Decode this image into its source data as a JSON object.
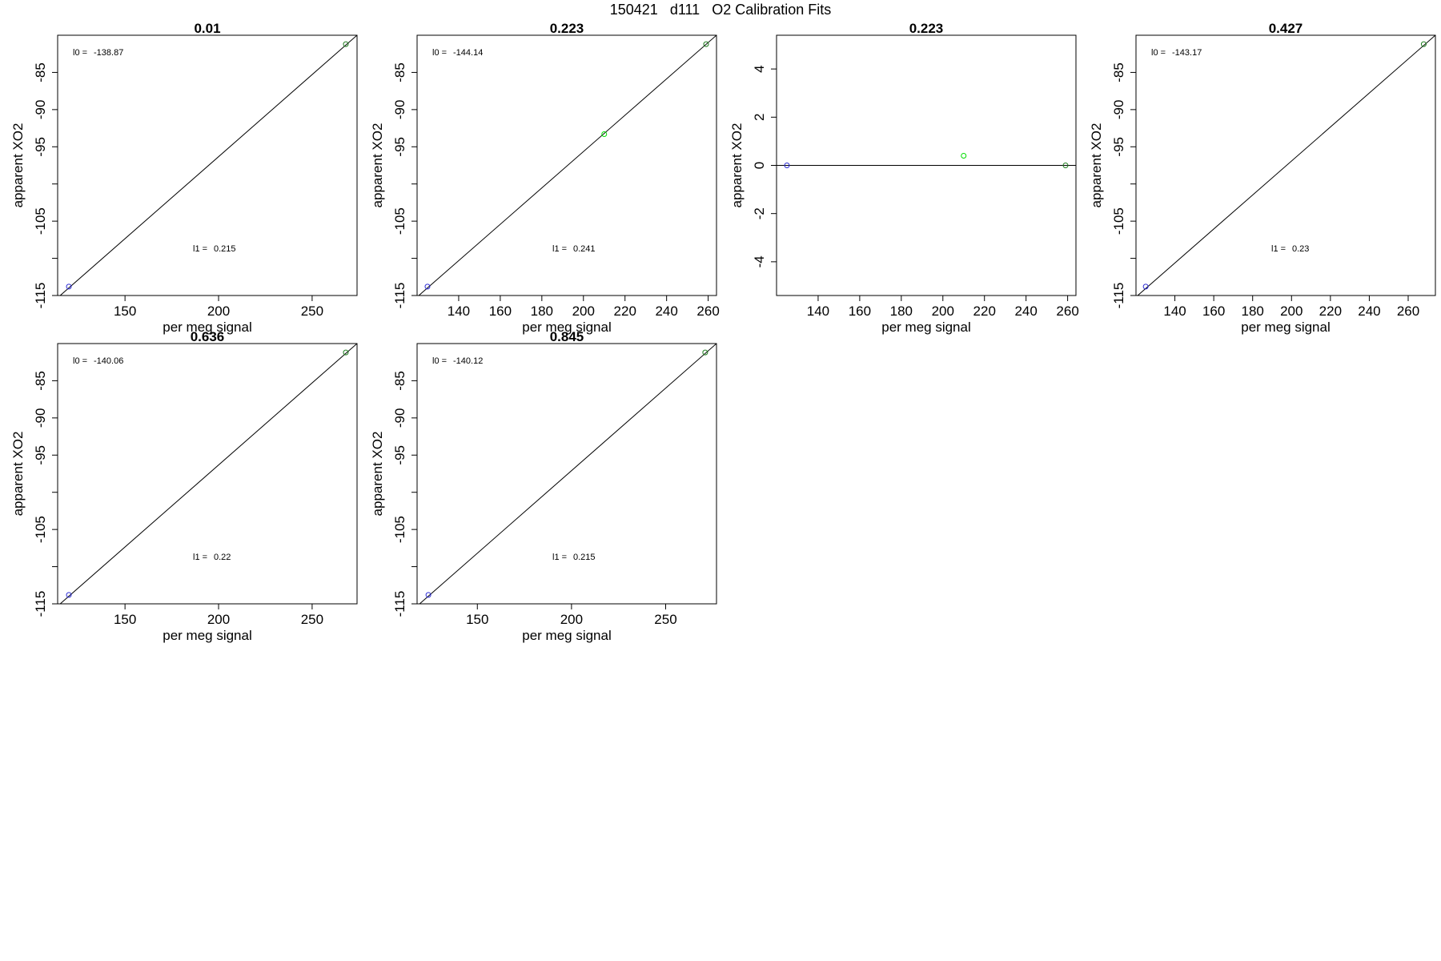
{
  "page_title": "150421   d111   O2 Calibration Fits",
  "chart_data": [
    {
      "type": "scatter",
      "title": "0.01",
      "xlabel": "per meg signal",
      "ylabel": "apparent XO2",
      "xlim": [
        114,
        274
      ],
      "ylim": [
        -115,
        -80
      ],
      "xticks": [
        150,
        200,
        250
      ],
      "yticks": [
        -115,
        -110,
        -105,
        -100,
        -95,
        -90,
        -85
      ],
      "ytick_labels": [
        "-115",
        "",
        "-105",
        "",
        "-95",
        "-90",
        "-85"
      ],
      "points": [
        {
          "x": 120,
          "y": -113.8,
          "color": "#2b2bd4"
        },
        {
          "x": 268,
          "y": -81.2,
          "color": "#1e7d1e"
        }
      ],
      "fit_line": {
        "x": [
          114,
          274
        ],
        "y": [
          -115.3,
          -80.0
        ]
      },
      "annotations": {
        "l0_label": "l0 =",
        "l0_value": "-138.87",
        "l1_label": "l1 =",
        "l1_value": "0.215"
      }
    },
    {
      "type": "scatter",
      "title": "0.223",
      "xlabel": "per meg signal",
      "ylabel": "apparent XO2",
      "xlim": [
        120,
        264
      ],
      "ylim": [
        -115,
        -80
      ],
      "xticks": [
        140,
        160,
        180,
        200,
        220,
        240,
        260
      ],
      "yticks": [
        -115,
        -110,
        -105,
        -100,
        -95,
        -90,
        -85
      ],
      "ytick_labels": [
        "-115",
        "",
        "-105",
        "",
        "-95",
        "-90",
        "-85"
      ],
      "points": [
        {
          "x": 125,
          "y": -113.8,
          "color": "#2b2bd4"
        },
        {
          "x": 210,
          "y": -93.3,
          "color": "#00dd00"
        },
        {
          "x": 259,
          "y": -81.2,
          "color": "#1e7d1e"
        }
      ],
      "fit_line": {
        "x": [
          120,
          264
        ],
        "y": [
          -115.2,
          -80.0
        ]
      },
      "annotations": {
        "l0_label": "l0 =",
        "l0_value": "-144.14",
        "l1_label": "l1 =",
        "l1_value": "0.241"
      }
    },
    {
      "type": "scatter",
      "title": "0.223",
      "xlabel": "per meg signal",
      "ylabel": "apparent XO2",
      "xlim": [
        120,
        264
      ],
      "ylim": [
        -5.4,
        5.4
      ],
      "xticks": [
        140,
        160,
        180,
        200,
        220,
        240,
        260
      ],
      "yticks": [
        -4,
        -2,
        0,
        2,
        4
      ],
      "ytick_labels": [
        "-4",
        "-2",
        "0",
        "2",
        "4"
      ],
      "points": [
        {
          "x": 125,
          "y": 0.0,
          "color": "#2b2bd4"
        },
        {
          "x": 210,
          "y": 0.4,
          "color": "#00dd00"
        },
        {
          "x": 259,
          "y": 0.0,
          "color": "#1e7d1e"
        }
      ],
      "fit_line": {
        "x": [
          120,
          264
        ],
        "y": [
          0,
          0
        ]
      },
      "annotations": {}
    },
    {
      "type": "scatter",
      "title": "0.427",
      "xlabel": "per meg signal",
      "ylabel": "apparent XO2",
      "xlim": [
        120,
        274
      ],
      "ylim": [
        -115,
        -80
      ],
      "xticks": [
        140,
        160,
        180,
        200,
        220,
        240,
        260
      ],
      "yticks": [
        -115,
        -110,
        -105,
        -100,
        -95,
        -90,
        -85
      ],
      "ytick_labels": [
        "-115",
        "",
        "-105",
        "",
        "-95",
        "-90",
        "-85"
      ],
      "points": [
        {
          "x": 125,
          "y": -113.8,
          "color": "#2b2bd4"
        },
        {
          "x": 268,
          "y": -81.2,
          "color": "#1e7d1e"
        }
      ],
      "fit_line": {
        "x": [
          120,
          274
        ],
        "y": [
          -115.2,
          -80.0
        ]
      },
      "annotations": {
        "l0_label": "l0 =",
        "l0_value": "-143.17",
        "l1_label": "l1 =",
        "l1_value": "0.23"
      }
    },
    {
      "type": "scatter",
      "title": "0.636",
      "xlabel": "per meg signal",
      "ylabel": "apparent XO2",
      "xlim": [
        114,
        274
      ],
      "ylim": [
        -115,
        -80
      ],
      "xticks": [
        150,
        200,
        250
      ],
      "yticks": [
        -115,
        -110,
        -105,
        -100,
        -95,
        -90,
        -85
      ],
      "ytick_labels": [
        "-115",
        "",
        "-105",
        "",
        "-95",
        "-90",
        "-85"
      ],
      "points": [
        {
          "x": 120,
          "y": -113.8,
          "color": "#2b2bd4"
        },
        {
          "x": 268,
          "y": -81.2,
          "color": "#1e7d1e"
        }
      ],
      "fit_line": {
        "x": [
          114,
          274
        ],
        "y": [
          -115.3,
          -80.0
        ]
      },
      "annotations": {
        "l0_label": "l0 =",
        "l0_value": "-140.06",
        "l1_label": "l1 =",
        "l1_value": "0.22"
      }
    },
    {
      "type": "scatter",
      "title": "0.845",
      "xlabel": "per meg signal",
      "ylabel": "apparent XO2",
      "xlim": [
        118,
        277
      ],
      "ylim": [
        -115,
        -80
      ],
      "xticks": [
        150,
        200,
        250
      ],
      "yticks": [
        -115,
        -110,
        -105,
        -100,
        -95,
        -90,
        -85
      ],
      "ytick_labels": [
        "-115",
        "",
        "-105",
        "",
        "-95",
        "-90",
        "-85"
      ],
      "points": [
        {
          "x": 124,
          "y": -113.8,
          "color": "#2b2bd4"
        },
        {
          "x": 271,
          "y": -81.2,
          "color": "#1e7d1e"
        }
      ],
      "fit_line": {
        "x": [
          118,
          277
        ],
        "y": [
          -115.3,
          -80.0
        ]
      },
      "annotations": {
        "l0_label": "l0 =",
        "l0_value": "-140.12",
        "l1_label": "l1 =",
        "l1_value": "0.215"
      }
    }
  ]
}
